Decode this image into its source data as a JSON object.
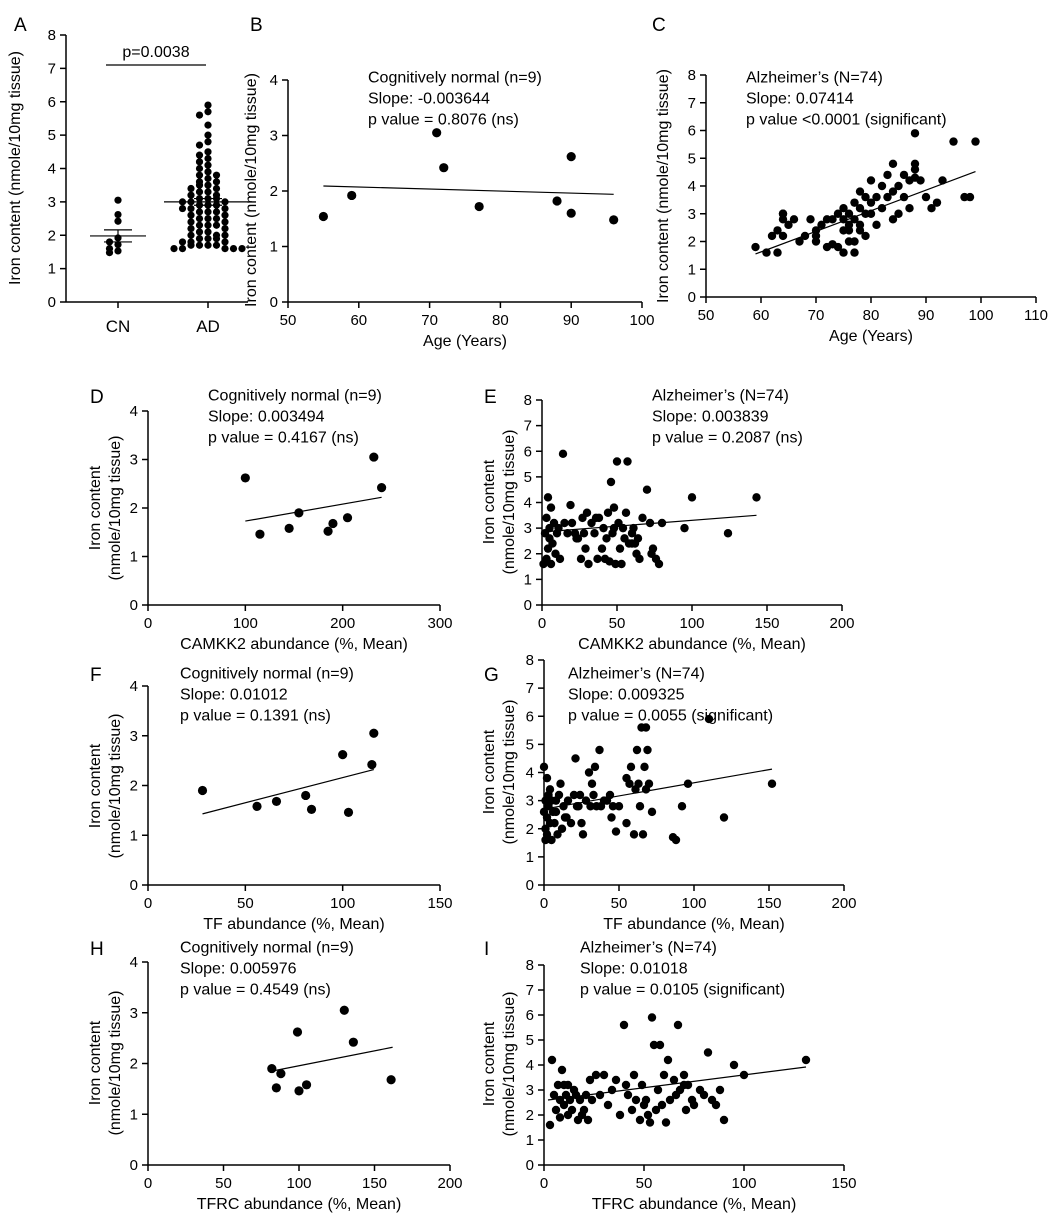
{
  "chart_data": [
    {
      "panel": "A",
      "type": "scatter",
      "categories": [
        "CN",
        "AD"
      ],
      "ylabel": "Iron content (nmole/10mg tissue)",
      "ylim": [
        0,
        8
      ],
      "yticks": [
        0,
        1,
        2,
        3,
        4,
        5,
        6,
        7,
        8
      ],
      "annotation": "p=0.0038",
      "groups": [
        {
          "name": "CN",
          "mean": 1.98,
          "sem_lower": 1.8,
          "sem_upper": 2.16,
          "values": [
            3.05,
            2.62,
            2.42,
            1.92,
            1.72,
            1.6,
            1.53,
            1.48,
            1.8
          ]
        },
        {
          "name": "AD",
          "mean": 3.0,
          "sem_lower": 2.9,
          "sem_upper": 3.1,
          "values": [
            5.9,
            5.7,
            5.6,
            5.3,
            5.0,
            4.8,
            4.7,
            4.5,
            4.4,
            4.3,
            4.2,
            4.1,
            4.0,
            3.9,
            3.8,
            3.8,
            3.7,
            3.6,
            3.6,
            3.5,
            3.5,
            3.4,
            3.4,
            3.3,
            3.3,
            3.2,
            3.2,
            3.1,
            3.1,
            3.1,
            3.0,
            3.0,
            3.0,
            2.9,
            2.9,
            2.9,
            2.8,
            2.8,
            2.8,
            2.7,
            2.7,
            2.7,
            2.6,
            2.6,
            2.5,
            2.5,
            2.5,
            2.4,
            2.4,
            2.3,
            2.3,
            2.3,
            2.2,
            2.2,
            2.1,
            2.1,
            2.0,
            2.0,
            2.0,
            1.9,
            1.9,
            1.9,
            1.8,
            1.8,
            1.8,
            1.7,
            1.7,
            1.7,
            1.7,
            1.6,
            1.6,
            1.6,
            1.6,
            1.6
          ]
        }
      ]
    },
    {
      "panel": "B",
      "type": "scatter",
      "xlabel": "Age (Years)",
      "ylabel": "Iron content (nmole/10mg tissue)",
      "xlim": [
        50,
        100
      ],
      "ylim": [
        0,
        4
      ],
      "xticks": [
        50,
        60,
        70,
        80,
        90,
        100
      ],
      "yticks": [
        0,
        1,
        2,
        3,
        4
      ],
      "annotation": [
        "Cognitively normal (n=9)",
        "Slope: -0.003644",
        "p value = 0.8076 (ns)"
      ],
      "fit": [
        [
          55,
          2.09
        ],
        [
          96,
          1.94
        ]
      ],
      "x": [
        55,
        59,
        71,
        72,
        77,
        88,
        90,
        90,
        96
      ],
      "y": [
        1.54,
        1.92,
        3.05,
        2.42,
        1.72,
        1.82,
        2.62,
        1.6,
        1.48
      ]
    },
    {
      "panel": "C",
      "type": "scatter",
      "xlabel": "Age (Years)",
      "ylabel": "Iron content (nmole/10mg tissue)",
      "xlim": [
        50,
        110
      ],
      "ylim": [
        0,
        8
      ],
      "xticks": [
        50,
        60,
        70,
        80,
        90,
        100,
        110
      ],
      "yticks": [
        0,
        1,
        2,
        3,
        4,
        5,
        6,
        7,
        8
      ],
      "annotation": [
        "Alzheimer’s (N=74)",
        "Slope: 0.07414",
        "p value <0.0001 (significant)"
      ],
      "fit": [
        [
          59,
          1.55
        ],
        [
          99,
          4.52
        ]
      ],
      "x": [
        59,
        61,
        62,
        63,
        63,
        64,
        64,
        64,
        65,
        67,
        68,
        69,
        70,
        70,
        71,
        72,
        72,
        73,
        74,
        74,
        75,
        75,
        75,
        75,
        76,
        76,
        76,
        76,
        77,
        77,
        77,
        77,
        78,
        78,
        78,
        78,
        79,
        79,
        79,
        80,
        80,
        80,
        81,
        81,
        82,
        82,
        83,
        83,
        84,
        84,
        84,
        85,
        85,
        86,
        86,
        87,
        87,
        88,
        88,
        88,
        89,
        90,
        91,
        92,
        93,
        95,
        97,
        98,
        99,
        64,
        66,
        70,
        73,
        88
      ],
      "y": [
        1.8,
        1.6,
        2.2,
        2.4,
        1.6,
        2.8,
        2.2,
        3.0,
        2.6,
        2.0,
        2.2,
        2.8,
        2.2,
        2.4,
        2.6,
        2.8,
        1.8,
        2.8,
        1.8,
        3.0,
        2.4,
        2.8,
        1.6,
        3.2,
        2.0,
        2.4,
        2.6,
        3.0,
        1.6,
        2.0,
        2.8,
        3.4,
        2.6,
        3.2,
        2.4,
        3.8,
        2.2,
        3.0,
        3.6,
        3.0,
        3.4,
        4.2,
        2.6,
        3.6,
        3.2,
        4.0,
        3.6,
        4.4,
        2.8,
        3.8,
        4.8,
        3.0,
        4.0,
        3.6,
        4.4,
        3.2,
        4.2,
        5.9,
        4.6,
        4.8,
        4.2,
        3.6,
        3.2,
        3.4,
        4.2,
        5.6,
        3.6,
        3.6,
        5.6,
        3.0,
        2.8,
        2.0,
        1.9,
        4.3
      ]
    },
    {
      "panel": "D",
      "type": "scatter",
      "xlabel": "CAMKK2 abundance (%, Mean)",
      "ylabel": "Iron content (nmole/10mg tissue)",
      "xlim": [
        0,
        300
      ],
      "ylim": [
        0,
        4
      ],
      "xticks": [
        0,
        100,
        200,
        300
      ],
      "yticks": [
        0,
        1,
        2,
        3,
        4
      ],
      "annotation": [
        "Cognitively normal (n=9)",
        "Slope: 0.003494",
        "p value = 0.4167 (ns)"
      ],
      "fit": [
        [
          100,
          1.73
        ],
        [
          240,
          2.22
        ]
      ],
      "x": [
        100,
        115,
        145,
        155,
        185,
        190,
        205,
        232,
        240
      ],
      "y": [
        2.62,
        1.46,
        1.58,
        1.9,
        1.52,
        1.68,
        1.8,
        3.05,
        2.42
      ]
    },
    {
      "panel": "E",
      "type": "scatter",
      "xlabel": "CAMKK2 abundance (%, Mean)",
      "ylabel": "Iron content (nmole/10mg tissue)",
      "xlim": [
        0,
        200
      ],
      "ylim": [
        0,
        8
      ],
      "xticks": [
        0,
        50,
        100,
        150,
        200
      ],
      "yticks": [
        0,
        1,
        2,
        3,
        4,
        5,
        6,
        7,
        8
      ],
      "annotation": [
        "Alzheimer’s (N=74)",
        "Slope: 0.003839",
        "p value = 0.2087 (ns)"
      ],
      "fit": [
        [
          0,
          2.85
        ],
        [
          143,
          3.5
        ]
      ],
      "x": [
        1,
        2,
        3,
        3,
        4,
        4,
        5,
        5,
        6,
        6,
        7,
        8,
        9,
        10,
        11,
        12,
        14,
        15,
        17,
        19,
        20,
        22,
        24,
        26,
        27,
        29,
        31,
        33,
        35,
        37,
        38,
        40,
        41,
        42,
        43,
        44,
        45,
        46,
        47,
        48,
        49,
        50,
        51,
        52,
        53,
        54,
        55,
        56,
        57,
        58,
        60,
        61,
        62,
        64,
        65,
        67,
        70,
        72,
        73,
        74,
        76,
        78,
        80,
        95,
        100,
        124,
        143,
        28,
        36,
        60,
        63,
        30,
        23,
        48
      ],
      "y": [
        1.6,
        2.8,
        1.8,
        3.4,
        2.2,
        4.2,
        3.0,
        2.6,
        3.8,
        1.6,
        2.4,
        3.2,
        2.0,
        2.8,
        3.0,
        1.8,
        5.9,
        3.2,
        2.8,
        3.9,
        3.2,
        2.8,
        2.6,
        1.8,
        3.4,
        2.2,
        1.6,
        3.2,
        2.8,
        1.8,
        3.4,
        2.2,
        3.0,
        1.8,
        2.6,
        3.6,
        1.7,
        4.8,
        2.8,
        3.8,
        1.6,
        5.6,
        3.2,
        2.2,
        1.6,
        3.0,
        2.6,
        3.6,
        5.6,
        2.4,
        2.8,
        3.0,
        2.4,
        2.6,
        1.8,
        3.4,
        4.5,
        3.2,
        2.0,
        2.2,
        1.8,
        1.6,
        3.2,
        3.0,
        4.2,
        2.8,
        4.2,
        2.8,
        3.4,
        2.4,
        2.0,
        3.6,
        2.6,
        3.0
      ]
    },
    {
      "panel": "F",
      "type": "scatter",
      "xlabel": "TF abundance (%, Mean)",
      "ylabel": "Iron content (nmole/10mg tissue)",
      "xlim": [
        0,
        150
      ],
      "ylim": [
        0,
        4
      ],
      "xticks": [
        0,
        50,
        100,
        150
      ],
      "yticks": [
        0,
        1,
        2,
        3,
        4
      ],
      "annotation": [
        "Cognitively normal (n=9)",
        "Slope: 0.01012",
        "p value = 0.1391 (ns)"
      ],
      "fit": [
        [
          28,
          1.43
        ],
        [
          116,
          2.32
        ]
      ],
      "x": [
        28,
        56,
        66,
        81,
        84,
        100,
        103,
        115,
        116
      ],
      "y": [
        1.9,
        1.58,
        1.68,
        1.8,
        1.52,
        2.62,
        1.46,
        2.42,
        3.05
      ]
    },
    {
      "panel": "G",
      "type": "scatter",
      "xlabel": "TF abundance (%, Mean)",
      "ylabel": "Iron content (nmole/10mg tissue)",
      "xlim": [
        0,
        200
      ],
      "ylim": [
        0,
        8
      ],
      "xticks": [
        0,
        50,
        100,
        150,
        200
      ],
      "yticks": [
        0,
        1,
        2,
        3,
        4,
        5,
        6,
        7,
        8
      ],
      "annotation": [
        "Alzheimer’s (N=74)",
        "Slope: 0.009325",
        "p value = 0.0055 (significant)"
      ],
      "fit": [
        [
          0,
          2.7
        ],
        [
          152,
          4.12
        ]
      ],
      "x": [
        0,
        0,
        1,
        1,
        1,
        2,
        2,
        2,
        3,
        3,
        4,
        4,
        5,
        5,
        6,
        7,
        8,
        9,
        10,
        11,
        12,
        13,
        14,
        16,
        18,
        20,
        21,
        22,
        24,
        25,
        26,
        28,
        30,
        31,
        32,
        34,
        35,
        37,
        38,
        40,
        42,
        44,
        46,
        48,
        50,
        55,
        57,
        58,
        60,
        61,
        62,
        63,
        64,
        65,
        66,
        67,
        68,
        69,
        70,
        72,
        86,
        88,
        92,
        96,
        110,
        120,
        152,
        45,
        33,
        8,
        15,
        23,
        55,
        68
      ],
      "y": [
        2.6,
        4.2,
        1.6,
        3.0,
        2.0,
        3.8,
        2.4,
        1.8,
        3.2,
        2.8,
        2.2,
        3.4,
        1.6,
        3.0,
        2.6,
        2.2,
        3.0,
        1.8,
        3.2,
        3.6,
        2.0,
        2.8,
        2.4,
        3.0,
        2.2,
        3.2,
        4.5,
        2.8,
        3.2,
        2.2,
        1.8,
        3.0,
        4.0,
        2.8,
        3.6,
        4.2,
        2.8,
        4.8,
        2.8,
        3.0,
        3.0,
        3.2,
        2.8,
        1.9,
        2.8,
        2.2,
        3.6,
        4.2,
        1.8,
        3.4,
        4.8,
        3.6,
        2.8,
        5.6,
        1.8,
        4.2,
        5.6,
        4.8,
        3.6,
        2.6,
        1.7,
        1.6,
        2.8,
        3.6,
        5.9,
        2.4,
        3.6,
        2.4,
        3.2,
        2.6,
        2.4,
        2.8,
        3.8,
        3.4
      ]
    },
    {
      "panel": "H",
      "type": "scatter",
      "xlabel": "TFRC abundance (%, Mean)",
      "ylabel": "Iron content (nmole/10mg tissue)",
      "xlim": [
        0,
        200
      ],
      "ylim": [
        0,
        4
      ],
      "xticks": [
        0,
        50,
        100,
        150,
        200
      ],
      "yticks": [
        0,
        1,
        2,
        3,
        4
      ],
      "annotation": [
        "Cognitively normal (n=9)",
        "Slope: 0.005976",
        "p value = 0.4549 (ns)"
      ],
      "fit": [
        [
          82,
          1.85
        ],
        [
          162,
          2.32
        ]
      ],
      "x": [
        82,
        85,
        88,
        99,
        100,
        105,
        130,
        136,
        161
      ],
      "y": [
        1.9,
        1.52,
        1.8,
        2.62,
        1.46,
        1.58,
        3.05,
        2.42,
        1.68
      ]
    },
    {
      "panel": "I",
      "type": "scatter",
      "xlabel": "TFRC abundance (%, Mean)",
      "ylabel": "Iron content (nmole/10mg tissue)",
      "xlim": [
        0,
        150
      ],
      "ylim": [
        0,
        8
      ],
      "xticks": [
        0,
        50,
        100,
        150
      ],
      "yticks": [
        0,
        1,
        2,
        3,
        4,
        5,
        6,
        7,
        8
      ],
      "annotation": [
        "Alzheimer’s (N=74)",
        "Slope: 0.01018",
        "p value = 0.0105 (significant)"
      ],
      "fit": [
        [
          2,
          2.6
        ],
        [
          131,
          3.92
        ]
      ],
      "x": [
        3,
        4,
        5,
        6,
        7,
        8,
        8,
        9,
        10,
        10,
        11,
        12,
        12,
        13,
        14,
        15,
        16,
        17,
        18,
        19,
        20,
        21,
        22,
        23,
        24,
        26,
        28,
        30,
        32,
        34,
        36,
        38,
        40,
        41,
        42,
        44,
        45,
        46,
        48,
        49,
        50,
        51,
        52,
        53,
        54,
        55,
        56,
        57,
        58,
        59,
        60,
        61,
        62,
        63,
        65,
        66,
        67,
        68,
        70,
        71,
        72,
        74,
        75,
        78,
        80,
        82,
        84,
        86,
        88,
        90,
        95,
        100,
        131,
        70
      ],
      "y": [
        1.6,
        4.2,
        2.8,
        2.2,
        3.2,
        2.6,
        1.9,
        3.8,
        2.4,
        3.2,
        2.8,
        2.0,
        3.2,
        2.6,
        2.2,
        3.0,
        2.8,
        1.8,
        2.6,
        2.0,
        2.2,
        2.8,
        1.8,
        3.4,
        2.6,
        3.6,
        2.8,
        3.6,
        2.4,
        3.0,
        3.4,
        2.0,
        5.6,
        3.2,
        2.8,
        2.2,
        3.6,
        2.6,
        1.8,
        3.2,
        2.4,
        2.6,
        2.0,
        1.7,
        5.9,
        4.8,
        2.2,
        3.0,
        4.8,
        2.4,
        3.6,
        1.7,
        4.2,
        2.6,
        3.4,
        2.8,
        5.6,
        3.0,
        3.6,
        2.2,
        3.2,
        2.6,
        2.4,
        3.0,
        2.8,
        4.5,
        2.6,
        2.4,
        3.0,
        1.8,
        4.0,
        3.6,
        4.2,
        3.2
      ]
    }
  ]
}
